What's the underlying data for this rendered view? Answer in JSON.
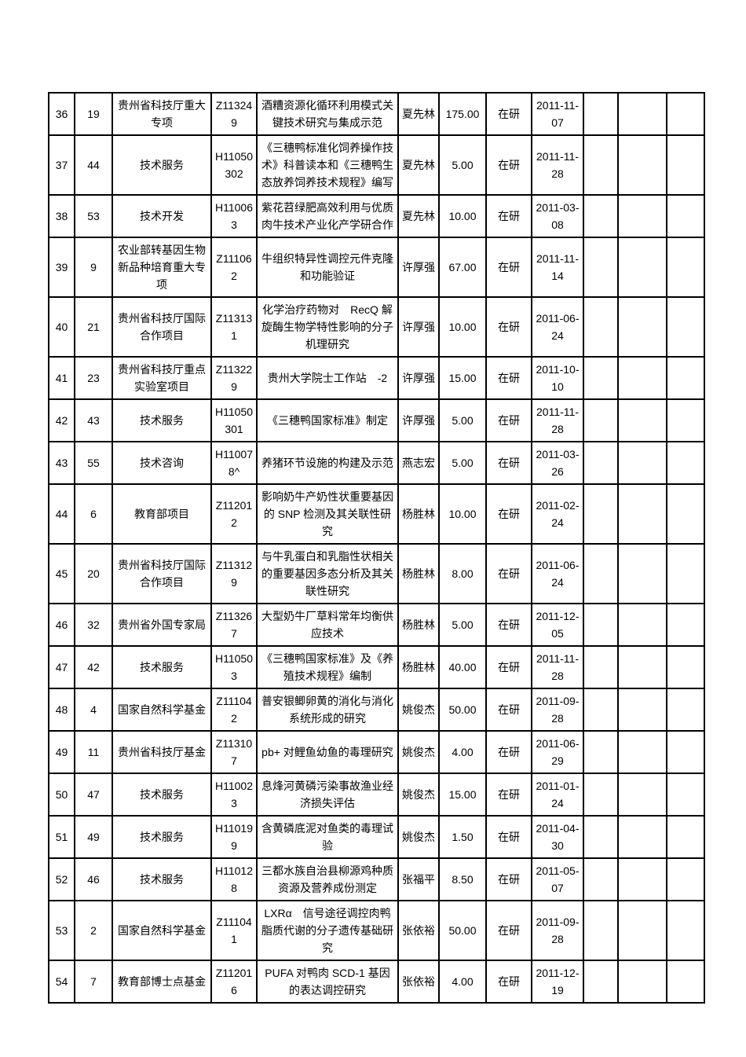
{
  "page": {
    "background": "#ffffff",
    "text_color": "#000000",
    "border_color": "#000000",
    "status_common": "在研"
  },
  "table": {
    "column_keys": [
      "no",
      "seq",
      "category",
      "code",
      "title",
      "leader",
      "amount",
      "status",
      "date",
      "blank1",
      "blank2",
      "blank3"
    ],
    "rows": [
      [
        "36",
        "19",
        "贵州省科技厅重大专项",
        "Z113249",
        "酒糟资源化循环利用模式关键技术研究与集成示范",
        "夏先林",
        "175.00",
        "在研",
        "2011-11-07",
        "",
        "",
        ""
      ],
      [
        "37",
        "44",
        "技术服务",
        "H11050302",
        "《三穗鸭标准化饲养操作技术》科普读本和《三穗鸭生态放养饲养技术规程》编写",
        "夏先林",
        "5.00",
        "在研",
        "2011-11-28",
        "",
        "",
        ""
      ],
      [
        "38",
        "53",
        "技术开发",
        "H110063",
        "紫花苕绿肥高效利用与优质肉牛技术产业化产学研合作",
        "夏先林",
        "10.00",
        "在研",
        "2011-03-08",
        "",
        "",
        ""
      ],
      [
        "39",
        "9",
        "农业部转基因生物新品种培育重大专项",
        "Z111062",
        "牛组织特异性调控元件克隆和功能验证",
        "许厚强",
        "67.00",
        "在研",
        "2011-11-14",
        "",
        "",
        ""
      ],
      [
        "40",
        "21",
        "贵州省科技厅国际合作项目",
        "Z113131",
        "化学治疗药物对　RecQ 解旋酶生物学特性影响的分子机理研究",
        "许厚强",
        "10.00",
        "在研",
        "2011-06-24",
        "",
        "",
        ""
      ],
      [
        "41",
        "23",
        "贵州省科技厅重点实验室项目",
        "Z113229",
        "贵州大学院士工作站　-2",
        "许厚强",
        "15.00",
        "在研",
        "2011-10-10",
        "",
        "",
        ""
      ],
      [
        "42",
        "43",
        "技术服务",
        "H11050301",
        "《三穗鸭国家标准》制定",
        "许厚强",
        "5.00",
        "在研",
        "2011-11-28",
        "",
        "",
        ""
      ],
      [
        "43",
        "55",
        "技术咨询",
        "H110078^",
        "养猪环节设施的构建及示范",
        "燕志宏",
        "5.00",
        "在研",
        "2011-03-26",
        "",
        "",
        ""
      ],
      [
        "44",
        "6",
        "教育部项目",
        "Z112012",
        "影响奶牛产奶性状重要基因的 SNP 检测及其关联性研究",
        "杨胜林",
        "10.00",
        "在研",
        "2011-02-24",
        "",
        "",
        ""
      ],
      [
        "45",
        "20",
        "贵州省科技厅国际合作项目",
        "Z113129",
        "与牛乳蛋白和乳脂性状相关的重要基因多态分析及其关联性研究",
        "杨胜林",
        "8.00",
        "在研",
        "2011-06-24",
        "",
        "",
        ""
      ],
      [
        "46",
        "32",
        "贵州省外国专家局",
        "Z113267",
        "大型奶牛厂草料常年均衡供应技术",
        "杨胜林",
        "5.00",
        "在研",
        "2011-12-05",
        "",
        "",
        ""
      ],
      [
        "47",
        "42",
        "技术服务",
        "H110503",
        "《三穗鸭国家标准》及《养殖技术规程》编制",
        "杨胜林",
        "40.00",
        "在研",
        "2011-11-28",
        "",
        "",
        ""
      ],
      [
        "48",
        "4",
        "国家自然科学基金",
        "Z111042",
        "普安银鲫卵黄的消化与消化系统形成的研究",
        "姚俊杰",
        "50.00",
        "在研",
        "2011-09-28",
        "",
        "",
        ""
      ],
      [
        "49",
        "11",
        "贵州省科技厅基金",
        "Z113107",
        "pb+ 对鲤鱼幼鱼的毒理研究",
        "姚俊杰",
        "4.00",
        "在研",
        "2011-06-29",
        "",
        "",
        ""
      ],
      [
        "50",
        "47",
        "技术服务",
        "H110023",
        "息烽河黄磷污染事故渔业经济损失评估",
        "姚俊杰",
        "15.00",
        "在研",
        "2011-01-24",
        "",
        "",
        ""
      ],
      [
        "51",
        "49",
        "技术服务",
        "H110199",
        "含黄磷底泥对鱼类的毒理试验",
        "姚俊杰",
        "1.50",
        "在研",
        "2011-04-30",
        "",
        "",
        ""
      ],
      [
        "52",
        "46",
        "技术服务",
        "H110128",
        "三都水族自治县柳源鸡种质资源及营养成份测定",
        "张福平",
        "8.50",
        "在研",
        "2011-05-07",
        "",
        "",
        ""
      ],
      [
        "53",
        "2",
        "国家自然科学基金",
        "Z111041",
        "LXRα　信号途径调控肉鸭脂质代谢的分子遗传基础研究",
        "张依裕",
        "50.00",
        "在研",
        "2011-09-28",
        "",
        "",
        ""
      ],
      [
        "54",
        "7",
        "教育部博士点基金",
        "Z112016",
        "PUFA 对鸭肉 SCD-1 基因的表达调控研究",
        "张依裕",
        "4.00",
        "在研",
        "2011-12-19",
        "",
        "",
        ""
      ]
    ]
  }
}
